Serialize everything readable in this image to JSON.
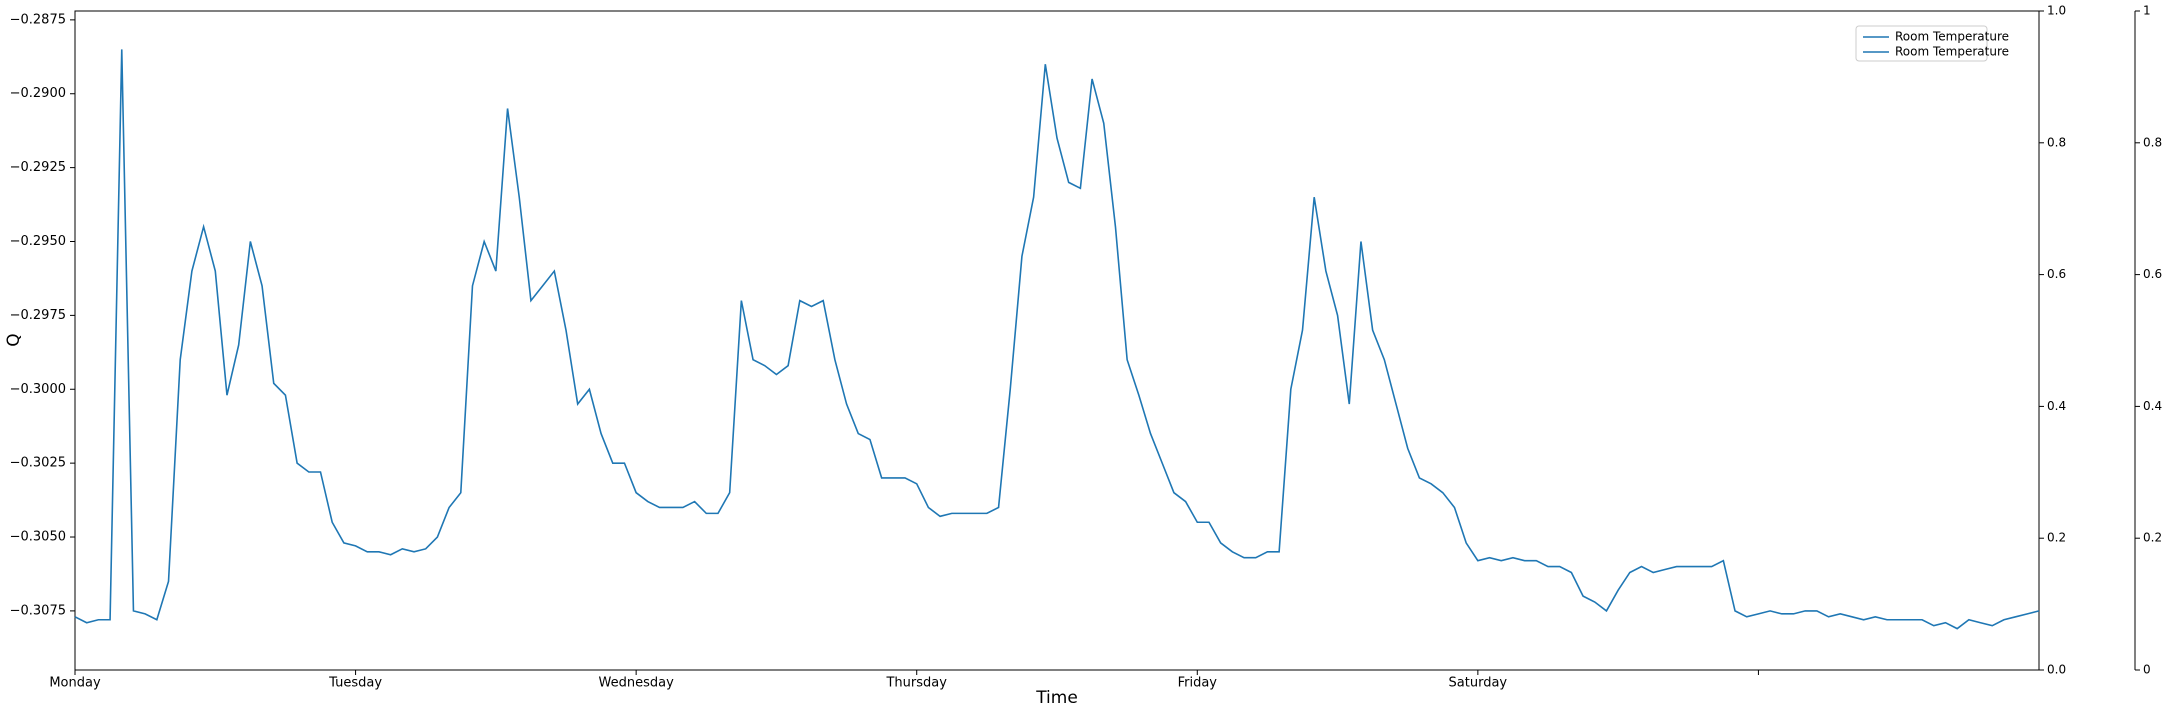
{
  "chart_data": {
    "type": "line",
    "x_label": "Time",
    "y_label": "Q",
    "x": [
      0,
      1,
      2,
      3,
      4,
      5,
      6,
      7,
      8,
      9,
      10,
      11,
      12,
      13,
      14,
      15,
      16,
      17,
      18,
      19,
      20,
      21,
      22,
      23,
      24,
      25,
      26,
      27,
      28,
      29,
      30,
      31,
      32,
      33,
      34,
      35,
      36,
      37,
      38,
      39,
      40,
      41,
      42,
      43,
      44,
      45,
      46,
      47,
      48,
      49,
      50,
      51,
      52,
      53,
      54,
      55,
      56,
      57,
      58,
      59,
      60,
      61,
      62,
      63,
      64,
      65,
      66,
      67,
      68,
      69,
      70,
      71,
      72,
      73,
      74,
      75,
      76,
      77,
      78,
      79,
      80,
      81,
      82,
      83,
      84,
      85,
      86,
      87,
      88,
      89,
      90,
      91,
      92,
      93,
      94,
      95,
      96,
      97,
      98,
      99,
      100,
      101,
      102,
      103,
      104,
      105,
      106,
      107,
      108,
      109,
      110,
      111,
      112,
      113,
      114,
      115,
      116,
      117,
      118,
      119,
      120,
      121,
      122,
      123,
      124,
      125,
      126,
      127,
      128,
      129,
      130,
      131,
      132,
      133,
      134,
      135,
      136,
      137,
      138,
      139,
      140,
      141,
      142,
      143,
      144,
      145,
      146,
      147,
      148,
      149,
      150,
      151,
      152,
      153,
      154,
      155,
      156,
      157,
      158,
      159,
      160,
      161,
      162,
      163,
      164,
      165,
      166,
      167,
      168
    ],
    "series": [
      {
        "name": "Room Temperature",
        "color": "#1f77b4",
        "values": [
          -0.3077,
          -0.3079,
          -0.3078,
          -0.3078,
          -0.2885,
          -0.3075,
          -0.3076,
          -0.3078,
          -0.3065,
          -0.299,
          -0.296,
          -0.2945,
          -0.296,
          -0.3002,
          -0.2985,
          -0.295,
          -0.2965,
          -0.2998,
          -0.3002,
          -0.3025,
          -0.3028,
          -0.3028,
          -0.3045,
          -0.3052,
          -0.3053,
          -0.3055,
          -0.3055,
          -0.3056,
          -0.3054,
          -0.3055,
          -0.3054,
          -0.305,
          -0.304,
          -0.3035,
          -0.2965,
          -0.295,
          -0.296,
          -0.2905,
          -0.2935,
          -0.297,
          -0.2965,
          -0.296,
          -0.298,
          -0.3005,
          -0.3,
          -0.3015,
          -0.3025,
          -0.3025,
          -0.3035,
          -0.3038,
          -0.304,
          -0.304,
          -0.304,
          -0.3038,
          -0.3042,
          -0.3042,
          -0.3035,
          -0.297,
          -0.299,
          -0.2992,
          -0.2995,
          -0.2992,
          -0.297,
          -0.2972,
          -0.297,
          -0.299,
          -0.3005,
          -0.3015,
          -0.3017,
          -0.303,
          -0.303,
          -0.303,
          -0.3032,
          -0.304,
          -0.3043,
          -0.3042,
          -0.3042,
          -0.3042,
          -0.3042,
          -0.304,
          -0.3,
          -0.2955,
          -0.2935,
          -0.289,
          -0.2915,
          -0.293,
          -0.2932,
          -0.2895,
          -0.291,
          -0.2945,
          -0.299,
          -0.3002,
          -0.3015,
          -0.3025,
          -0.3035,
          -0.3038,
          -0.3045,
          -0.3045,
          -0.3052,
          -0.3055,
          -0.3057,
          -0.3057,
          -0.3055,
          -0.3055,
          -0.3,
          -0.298,
          -0.2935,
          -0.296,
          -0.2975,
          -0.3005,
          -0.295,
          -0.298,
          -0.299,
          -0.3005,
          -0.302,
          -0.303,
          -0.3032,
          -0.3035,
          -0.304,
          -0.3052,
          -0.3058,
          -0.3057,
          -0.3058,
          -0.3057,
          -0.3058,
          -0.3058,
          -0.306,
          -0.306,
          -0.3062,
          -0.307,
          -0.3072,
          -0.3075,
          -0.3068,
          -0.3062,
          -0.306,
          -0.3062,
          -0.3061,
          -0.306,
          -0.306,
          -0.306,
          -0.306,
          -0.3058,
          -0.3075,
          -0.3077,
          -0.3076,
          -0.3075,
          -0.3076,
          -0.3076,
          -0.3075,
          -0.3075,
          -0.3077,
          -0.3076,
          -0.3077,
          -0.3078,
          -0.3077,
          -0.3078,
          -0.3078,
          -0.3078,
          -0.3078,
          -0.308,
          -0.3079,
          -0.3081,
          -0.3078,
          -0.3079,
          -0.308,
          -0.3078,
          -0.3077,
          -0.3076,
          -0.3075
        ]
      },
      {
        "name": "Room Temperature",
        "color": "#1f77b4",
        "axis": "y2"
      }
    ],
    "xlim": [
      0,
      168
    ],
    "xticks": [
      {
        "value": 0,
        "label": "Monday"
      },
      {
        "value": 24,
        "label": "Tuesday"
      },
      {
        "value": 48,
        "label": "Wednesday"
      },
      {
        "value": 72,
        "label": "Thursday"
      },
      {
        "value": 96,
        "label": "Friday"
      },
      {
        "value": 120,
        "label": "Saturday"
      },
      {
        "value": 144,
        "label": null
      }
    ],
    "ylim": [
      -0.3095,
      -0.2872
    ],
    "yticks": [
      {
        "value": -0.3075,
        "label": "−0.3075"
      },
      {
        "value": -0.305,
        "label": "−0.3050"
      },
      {
        "value": -0.3025,
        "label": "−0.3025"
      },
      {
        "value": -0.3,
        "label": "−0.3000"
      },
      {
        "value": -0.2975,
        "label": "−0.2975"
      },
      {
        "value": -0.295,
        "label": "−0.2950"
      },
      {
        "value": -0.2925,
        "label": "−0.2925"
      },
      {
        "value": -0.29,
        "label": "−0.2900"
      },
      {
        "value": -0.2875,
        "label": "−0.2875"
      }
    ],
    "y2lim": [
      0,
      1
    ],
    "y2ticks": [
      {
        "value": 0,
        "label": "0.0"
      },
      0.2,
      0.4,
      0.6,
      0.8,
      {
        "value": 1,
        "label": "1.0"
      }
    ],
    "y3lim": [
      0,
      1
    ],
    "y3ticks": [
      0,
      0.2,
      0.4,
      0.6,
      0.8,
      1
    ],
    "legend": "upper right"
  }
}
